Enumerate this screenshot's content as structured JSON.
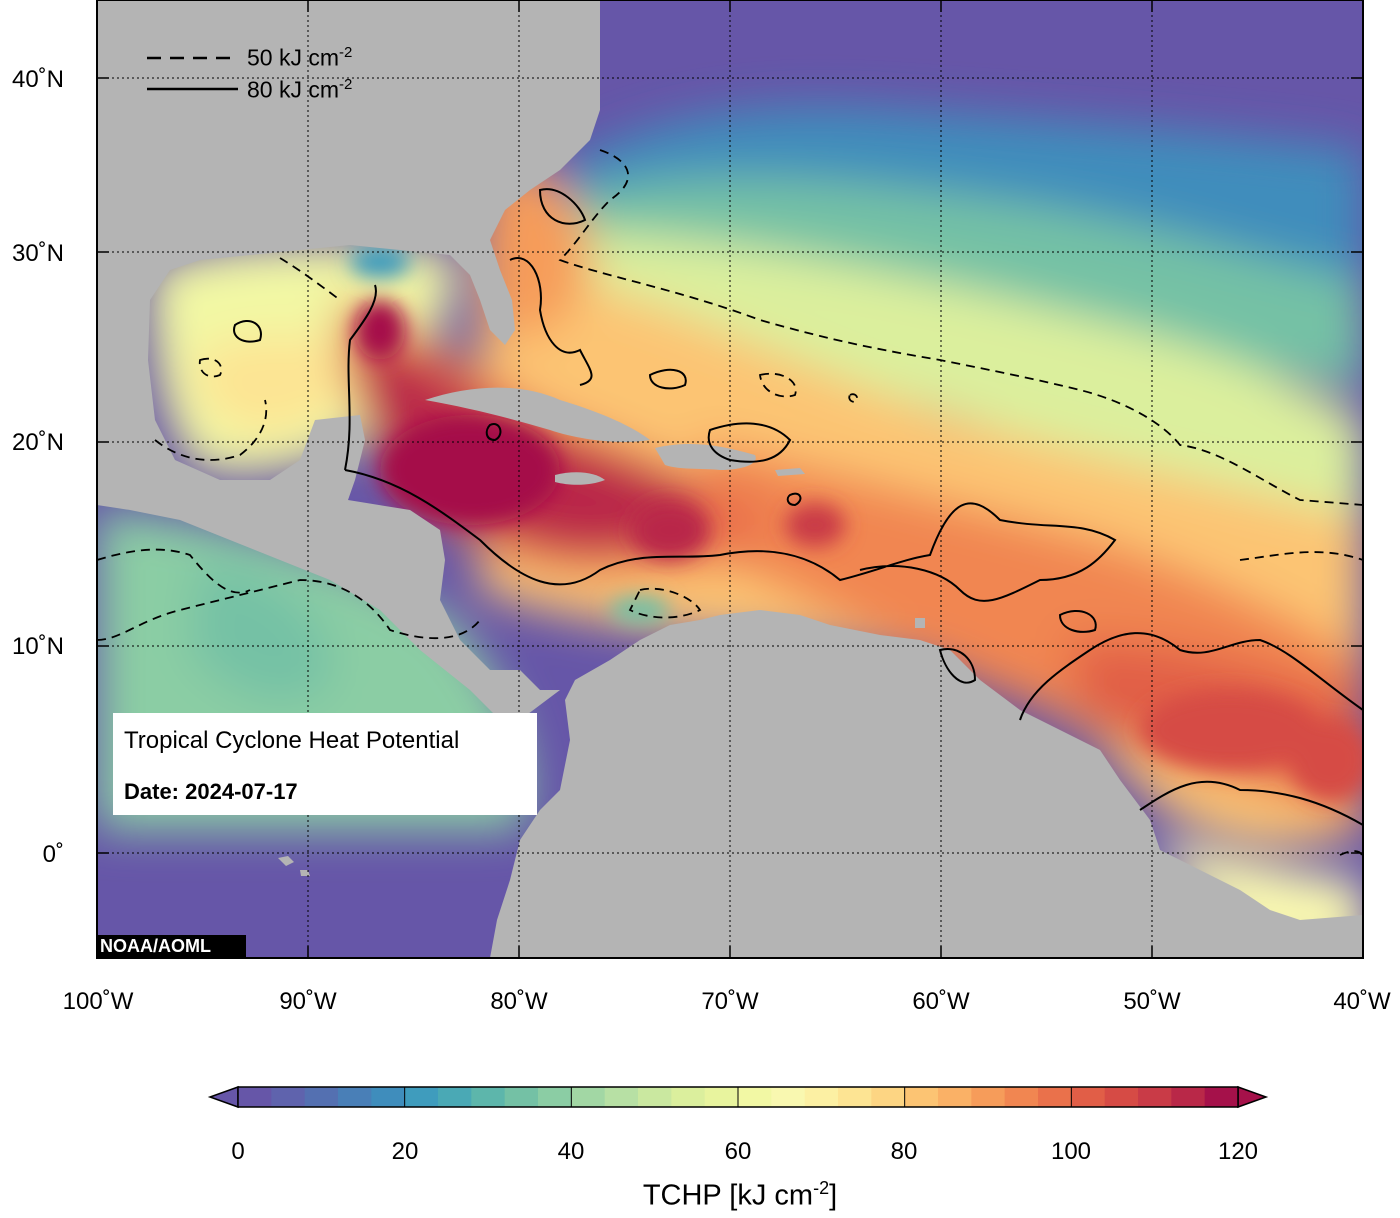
{
  "map": {
    "lat_labels": [
      "40˚N",
      "30˚N",
      "20˚N",
      "10˚N",
      "0˚"
    ],
    "lon_labels": [
      "100˚W",
      "90˚W",
      "80˚W",
      "70˚W",
      "60˚W",
      "50˚W",
      "40˚W"
    ],
    "legend": {
      "dashed_label": "50 kJ cm",
      "dashed_sup": "-2",
      "solid_label": "80 kJ cm",
      "solid_sup": "-2"
    },
    "info_box": {
      "title": "Tropical Cyclone Heat Potential",
      "date": "Date: 2024-07-17"
    },
    "credit": "NOAA/AOML",
    "colors": {
      "land": "#b4b4b4",
      "low": "#6656a8",
      "high": "#a5114a",
      "frame": "#000000"
    }
  },
  "colorbar": {
    "tick_labels": [
      "0",
      "20",
      "40",
      "60",
      "80",
      "100",
      "120"
    ],
    "title": "TCHP [kJ cm",
    "title_sup": "-2",
    "title_end": "]",
    "colors": [
      "#6656a8",
      "#5f63ad",
      "#5470b1",
      "#497fb7",
      "#3f8dbc",
      "#3f9cbd",
      "#4aa9b5",
      "#5db6ab",
      "#74c1a5",
      "#8bcda4",
      "#a2d7a4",
      "#b7e0a4",
      "#cae8a0",
      "#dbef9d",
      "#e8f49e",
      "#f2f8a4",
      "#f9f8b0",
      "#fcf0a3",
      "#fde493",
      "#fdd583",
      "#fcc473",
      "#fab166",
      "#f69c5a",
      "#f18651",
      "#ea714b",
      "#e15e47",
      "#d64b45",
      "#c93b47",
      "#b92848",
      "#a5114a"
    ]
  }
}
